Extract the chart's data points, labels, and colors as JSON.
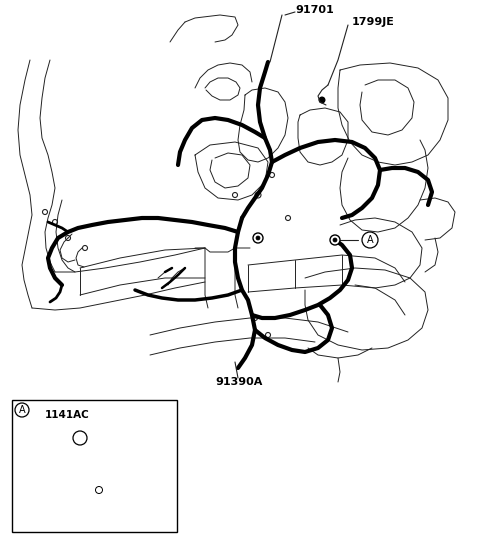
{
  "bg_color": "#ffffff",
  "line_color": "#222222",
  "wire_color": "#000000",
  "label_91701": "91701",
  "label_1799JE": "1799JE",
  "label_91390A": "91390A",
  "label_A": "A",
  "label_1141AC": "1141AC",
  "figsize": [
    4.8,
    5.41
  ],
  "dpi": 100
}
